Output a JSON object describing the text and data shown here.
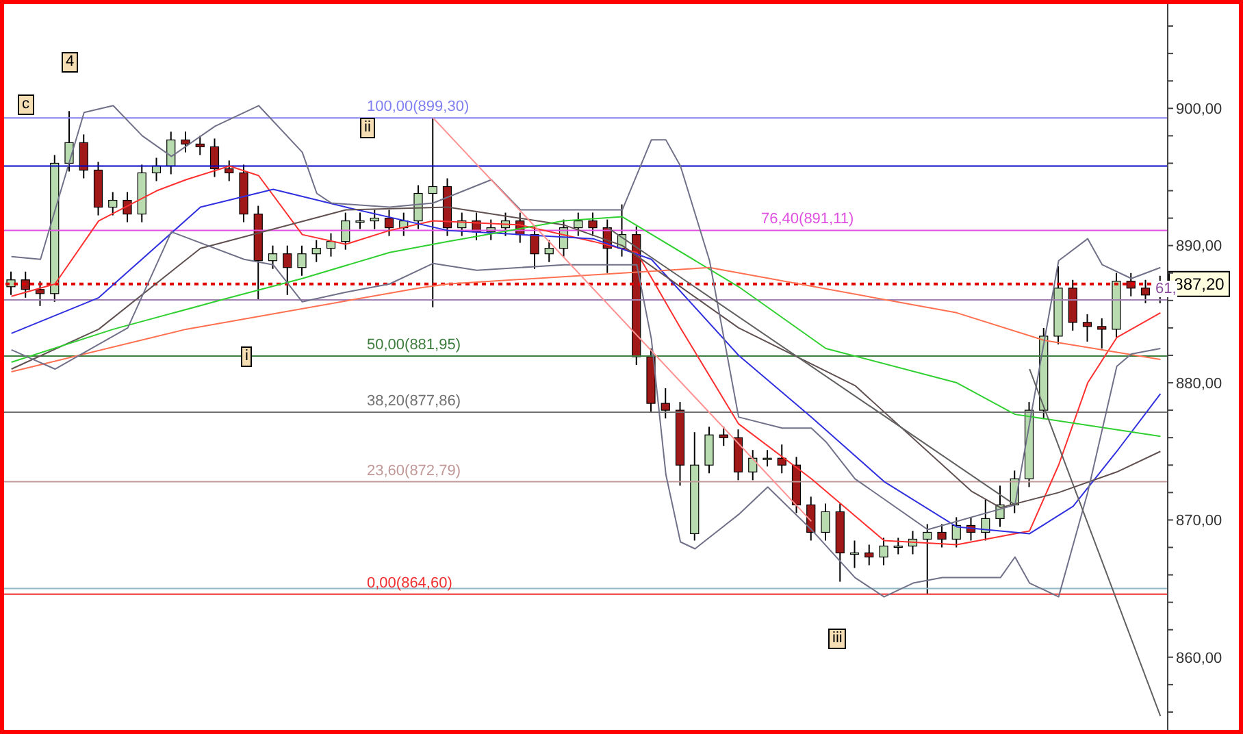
{
  "chart_data": {
    "type": "candlestick",
    "tick_labels": "y",
    "categories": [
      null,
      null,
      null,
      null,
      null,
      null,
      null,
      null,
      null,
      null,
      null,
      null,
      null,
      null,
      null,
      null,
      null,
      null,
      null,
      null,
      null,
      null,
      null,
      null,
      null,
      null,
      null,
      null,
      null,
      null,
      null,
      null,
      null,
      null,
      null,
      null,
      null,
      null,
      null,
      null,
      null,
      null,
      null,
      null,
      null,
      null,
      null,
      null,
      null,
      null,
      null,
      null,
      null,
      null,
      null,
      null,
      null,
      null,
      null,
      null,
      null,
      null,
      null,
      null,
      null,
      null,
      null,
      null,
      null,
      null,
      null,
      null,
      null,
      null,
      null,
      null,
      null,
      null,
      null,
      null
    ],
    "ylim": [
      854.7,
      907.6
    ],
    "yticks": [
      {
        "value": 856,
        "label": null
      },
      {
        "value": 858,
        "label": null
      },
      {
        "value": 860,
        "label": "860,00"
      },
      {
        "value": 862,
        "label": null
      },
      {
        "value": 864,
        "label": null
      },
      {
        "value": 866,
        "label": null
      },
      {
        "value": 868,
        "label": null
      },
      {
        "value": 870,
        "label": "870,00"
      },
      {
        "value": 872,
        "label": null
      },
      {
        "value": 874,
        "label": null
      },
      {
        "value": 876,
        "label": null
      },
      {
        "value": 878,
        "label": null
      },
      {
        "value": 880,
        "label": "880,00"
      },
      {
        "value": 882,
        "label": null
      },
      {
        "value": 884,
        "label": null
      },
      {
        "value": 886,
        "label": null
      },
      {
        "value": 888,
        "label": null
      },
      {
        "value": 890,
        "label": "890,00"
      },
      {
        "value": 892,
        "label": null
      },
      {
        "value": 894,
        "label": null
      },
      {
        "value": 896,
        "label": null
      },
      {
        "value": 898,
        "label": null
      },
      {
        "value": 900,
        "label": "900,00"
      },
      {
        "value": 902,
        "label": null
      },
      {
        "value": 904,
        "label": null
      },
      {
        "value": 906,
        "label": null
      }
    ],
    "annotations": [
      "4",
      "c",
      "ii",
      "i",
      "iii",
      "61,"
    ],
    "ref_lines": [
      {
        "axis": "y",
        "value": 899.3,
        "label": "100,00(899,30)",
        "color": "#8080f0"
      },
      {
        "axis": "y",
        "value": 895.8,
        "label": null,
        "color": "#0000c0"
      },
      {
        "axis": "y",
        "value": 891.11,
        "label": "76,40(891,11)",
        "color": "#e050e0"
      },
      {
        "axis": "y",
        "value": 887.2,
        "label": "887,20",
        "color": "#e00000",
        "line_style": "dotted"
      },
      {
        "axis": "y",
        "value": 886.04,
        "label": null,
        "color": "#a080b0"
      },
      {
        "axis": "y",
        "value": 881.95,
        "label": "50,00(881,95)",
        "color": "#3c7c3c"
      },
      {
        "axis": "y",
        "value": 877.86,
        "label": "38,20(877,86)",
        "color": "#707070"
      },
      {
        "axis": "y",
        "value": 872.79,
        "label": "23,60(872,79)",
        "color": "#c09898"
      },
      {
        "axis": "y",
        "value": 865.0,
        "label": null,
        "color": "#90b8c8"
      },
      {
        "axis": "y",
        "value": 864.6,
        "label": "0,00(864,60)",
        "color": "#f03030"
      }
    ],
    "series": [
      {
        "color": "#000000",
        "colors": [
          "#b8dcb0",
          "#a01818",
          "#a01818",
          "#b8dcb0",
          "#b8dcb0",
          "#a01818",
          "#a01818",
          "#b8dcb0",
          "#a01818",
          "#b8dcb0",
          "#b8dcb0",
          "#b8dcb0",
          "#a01818",
          "#a01818",
          "#a01818",
          "#a01818",
          "#a01818",
          "#a01818",
          "#b8dcb0",
          "#a01818",
          "#b8dcb0",
          "#b8dcb0",
          "#b8dcb0",
          "#b8dcb0",
          "#b8dcb0",
          "#b8dcb0",
          "#a01818",
          "#b8dcb0",
          "#b8dcb0",
          "#b8dcb0",
          "#a01818",
          "#b8dcb0",
          "#a01818",
          "#b8dcb0",
          "#b8dcb0",
          "#a01818",
          "#a01818",
          "#b8dcb0",
          "#b8dcb0",
          "#b8dcb0",
          "#a01818",
          "#a01818",
          "#b8dcb0",
          "#a01818",
          "#a01818",
          "#a01818",
          "#a01818",
          "#b8dcb0",
          "#b8dcb0",
          "#a01818",
          "#a01818",
          "#b8dcb0",
          "#b8dcb0",
          "#a01818",
          "#a01818",
          "#a01818",
          "#b8dcb0",
          "#a01818",
          "#b8dcb0",
          "#a01818",
          "#b8dcb0",
          "#b8dcb0",
          "#b8dcb0",
          "#b8dcb0",
          "#a01818",
          "#b8dcb0",
          "#a01818",
          "#b8dcb0",
          "#b8dcb0",
          "#b8dcb0",
          "#b8dcb0",
          "#b8dcb0",
          "#b8dcb0",
          "#a01818",
          "#a01818",
          "#a01818",
          "#b8dcb0",
          "#a01818",
          "#a01818",
          "#b8dcb0"
        ],
        "ohlc": [
          [
            887.0,
            888.1,
            886.4,
            887.5
          ],
          [
            887.5,
            888.1,
            886.2,
            886.8
          ],
          [
            886.8,
            887.4,
            885.6,
            886.5
          ],
          [
            886.5,
            896.6,
            885.9,
            896.0
          ],
          [
            896.0,
            899.8,
            895.4,
            897.5
          ],
          [
            897.5,
            898.1,
            894.9,
            895.5
          ],
          [
            895.5,
            896.1,
            892.2,
            892.8
          ],
          [
            892.8,
            893.9,
            892.2,
            893.3
          ],
          [
            893.3,
            893.9,
            891.7,
            892.3
          ],
          [
            892.3,
            895.9,
            891.7,
            895.3
          ],
          [
            895.3,
            896.4,
            894.7,
            895.8
          ],
          [
            895.8,
            898.3,
            895.2,
            897.7
          ],
          [
            897.7,
            898.3,
            896.8,
            897.4
          ],
          [
            897.4,
            898.0,
            896.6,
            897.2
          ],
          [
            897.2,
            897.8,
            895.0,
            895.6
          ],
          [
            895.6,
            896.2,
            894.7,
            895.3
          ],
          [
            895.3,
            895.9,
            891.7,
            892.3
          ],
          [
            892.3,
            892.9,
            886.0,
            888.9
          ],
          [
            888.9,
            890.0,
            888.3,
            889.4
          ],
          [
            889.4,
            890.0,
            886.4,
            888.4
          ],
          [
            888.4,
            890.0,
            887.8,
            889.4
          ],
          [
            889.4,
            890.4,
            888.8,
            889.8
          ],
          [
            889.8,
            890.9,
            889.2,
            890.3
          ],
          [
            890.3,
            892.4,
            889.7,
            891.8
          ],
          [
            891.8,
            892.4,
            891.2,
            891.8
          ],
          [
            891.8,
            892.6,
            891.2,
            892.0
          ],
          [
            892.0,
            892.6,
            890.7,
            891.3
          ],
          [
            891.3,
            892.4,
            890.7,
            891.8
          ],
          [
            891.8,
            894.4,
            891.2,
            893.8
          ],
          [
            893.8,
            899.3,
            885.5,
            894.3
          ],
          [
            894.3,
            894.9,
            890.7,
            891.3
          ],
          [
            891.3,
            892.4,
            890.7,
            891.8
          ],
          [
            891.8,
            892.4,
            890.4,
            891.0
          ],
          [
            891.0,
            891.9,
            890.4,
            891.3
          ],
          [
            891.3,
            892.4,
            890.7,
            891.8
          ],
          [
            891.8,
            892.4,
            890.2,
            890.8
          ],
          [
            890.8,
            891.4,
            888.3,
            889.4
          ],
          [
            889.4,
            890.4,
            888.8,
            889.8
          ],
          [
            889.8,
            891.9,
            889.2,
            891.3
          ],
          [
            891.3,
            892.4,
            890.7,
            891.8
          ],
          [
            891.8,
            892.4,
            890.7,
            891.3
          ],
          [
            891.3,
            891.9,
            888.0,
            889.8
          ],
          [
            889.8,
            893.0,
            889.2,
            890.8
          ],
          [
            890.8,
            891.4,
            881.3,
            881.9
          ],
          [
            881.9,
            882.5,
            877.9,
            878.5
          ],
          [
            878.5,
            879.6,
            877.4,
            878.0
          ],
          [
            878.0,
            878.6,
            872.5,
            874.0
          ],
          [
            869.0,
            876.4,
            868.5,
            874.0
          ],
          [
            874.0,
            876.8,
            873.4,
            876.2
          ],
          [
            876.2,
            876.8,
            875.4,
            876.0
          ],
          [
            876.0,
            876.6,
            872.9,
            873.5
          ],
          [
            873.5,
            875.1,
            872.9,
            874.5
          ],
          [
            874.5,
            875.1,
            873.9,
            874.5
          ],
          [
            874.5,
            875.5,
            873.4,
            874.0
          ],
          [
            874.0,
            874.6,
            870.5,
            871.1
          ],
          [
            871.1,
            871.7,
            868.5,
            869.1
          ],
          [
            869.1,
            871.2,
            868.5,
            870.6
          ],
          [
            870.6,
            871.2,
            865.5,
            867.6
          ],
          [
            867.6,
            868.5,
            866.5,
            867.6
          ],
          [
            867.6,
            868.2,
            866.7,
            867.3
          ],
          [
            867.3,
            868.7,
            866.7,
            868.1
          ],
          [
            868.1,
            868.7,
            867.5,
            868.1
          ],
          [
            868.1,
            869.2,
            867.5,
            868.6
          ],
          [
            868.6,
            869.7,
            864.6,
            869.1
          ],
          [
            869.1,
            869.7,
            868.0,
            868.6
          ],
          [
            868.6,
            870.2,
            868.0,
            869.6
          ],
          [
            869.6,
            870.2,
            868.5,
            869.1
          ],
          [
            869.1,
            871.5,
            868.5,
            870.1
          ],
          [
            870.1,
            872.5,
            869.5,
            871.1
          ],
          [
            871.1,
            873.6,
            870.5,
            873.0
          ],
          [
            873.0,
            878.6,
            872.4,
            878.0
          ],
          [
            878.0,
            884.0,
            877.4,
            883.4
          ],
          [
            883.4,
            888.5,
            882.8,
            886.9
          ],
          [
            886.9,
            887.5,
            883.8,
            884.4
          ],
          [
            884.4,
            885.0,
            883.0,
            884.1
          ],
          [
            884.1,
            884.7,
            882.5,
            883.9
          ],
          [
            883.9,
            888.0,
            883.3,
            887.4
          ],
          [
            887.4,
            888.0,
            886.3,
            886.9
          ],
          [
            886.9,
            887.5,
            885.8,
            886.4
          ],
          [
            886.4,
            887.8,
            885.8,
            887.2
          ]
        ]
      },
      {
        "type": "line",
        "color": "#ff3030",
        "values": [
          886.3,
          null,
          null,
          887.2,
          null,
          null,
          891.8,
          null,
          null,
          null,
          894,
          null,
          894.8,
          null,
          null,
          895.8,
          null,
          895.1,
          null,
          null,
          890.8,
          null,
          null,
          890.1,
          null,
          null,
          891.1,
          null,
          null,
          891.8,
          null,
          null,
          null,
          null,
          null,
          891.5,
          null,
          null,
          null,
          null,
          890.3,
          null,
          null,
          889.5,
          null,
          null,
          884,
          null,
          null,
          null,
          877,
          null,
          null,
          null,
          null,
          873,
          null,
          null,
          null,
          null,
          868.5,
          null,
          null,
          null,
          null,
          868.2,
          null,
          null,
          null,
          null,
          869.2,
          null,
          874,
          null,
          880,
          null,
          883.3,
          null,
          null,
          885.1
        ]
      },
      {
        "type": "line",
        "color": "#3030e0",
        "values": [
          883.6,
          null,
          null,
          null,
          null,
          null,
          886.2,
          null,
          null,
          null,
          null,
          null,
          null,
          892.8,
          null,
          null,
          null,
          null,
          894.1,
          null,
          null,
          null,
          null,
          892.8,
          null,
          null,
          null,
          null,
          null,
          null,
          891.1,
          null,
          null,
          null,
          null,
          null,
          null,
          null,
          null,
          null,
          890.5,
          null,
          null,
          null,
          889,
          null,
          null,
          null,
          null,
          null,
          882,
          null,
          null,
          null,
          null,
          877.5,
          null,
          null,
          null,
          null,
          872.8,
          null,
          null,
          null,
          null,
          869.5,
          null,
          null,
          null,
          null,
          869,
          null,
          null,
          871,
          null,
          null,
          875,
          null,
          null,
          879.2
        ]
      },
      {
        "type": "line",
        "color": "#605050",
        "values": [
          881,
          null,
          null,
          null,
          null,
          null,
          883.9,
          null,
          null,
          null,
          null,
          null,
          null,
          889.8,
          null,
          null,
          null,
          null,
          null,
          null,
          null,
          null,
          null,
          892.6,
          null,
          null,
          null,
          null,
          null,
          null,
          892.8,
          null,
          null,
          null,
          null,
          null,
          null,
          null,
          891.5,
          null,
          null,
          null,
          890,
          null,
          null,
          null,
          null,
          null,
          null,
          null,
          884,
          null,
          null,
          null,
          null,
          null,
          null,
          null,
          879.8,
          null,
          null,
          null,
          null,
          null,
          null,
          null,
          872.1,
          null,
          870.9,
          null,
          null,
          null,
          872,
          null,
          null,
          null,
          873.5,
          null,
          null,
          875
        ]
      },
      {
        "type": "line",
        "color": "#30d030",
        "values": [
          881.5,
          null,
          null,
          null,
          null,
          null,
          null,
          883.9,
          null,
          null,
          null,
          null,
          null,
          null,
          null,
          886.2,
          null,
          null,
          null,
          null,
          887.6,
          null,
          null,
          null,
          null,
          null,
          889.5,
          null,
          null,
          null,
          890.3,
          null,
          null,
          null,
          null,
          null,
          null,
          null,
          891.8,
          null,
          null,
          null,
          892.1,
          null,
          null,
          null,
          null,
          null,
          null,
          null,
          887,
          null,
          null,
          null,
          null,
          null,
          882.5,
          null,
          null,
          null,
          null,
          null,
          null,
          null,
          null,
          880,
          null,
          null,
          null,
          877.7,
          null,
          null,
          null,
          null,
          null,
          null,
          null,
          null,
          null,
          876.1
        ]
      },
      {
        "type": "line",
        "color": "#ff7050",
        "values": [
          880.8,
          null,
          null,
          null,
          null,
          null,
          null,
          null,
          null,
          null,
          null,
          null,
          883.9,
          null,
          null,
          null,
          null,
          null,
          null,
          null,
          null,
          null,
          null,
          null,
          null,
          null,
          null,
          null,
          886.9,
          null,
          887.2,
          null,
          null,
          null,
          null,
          null,
          null,
          null,
          null,
          null,
          null,
          null,
          null,
          null,
          null,
          null,
          null,
          null,
          888.4,
          null,
          null,
          null,
          null,
          null,
          null,
          null,
          null,
          null,
          null,
          null,
          null,
          null,
          null,
          null,
          null,
          885.1,
          null,
          null,
          null,
          null,
          null,
          883.1,
          null,
          null,
          null,
          null,
          null,
          null,
          null,
          881.7
        ]
      },
      {
        "type": "line",
        "color": "#707088",
        "values": [
          889.2,
          null,
          889,
          null,
          null,
          899.7,
          null,
          900.2,
          null,
          898,
          null,
          896.5,
          null,
          null,
          898.7,
          null,
          899.7,
          900.2,
          null,
          null,
          896.8,
          893.8,
          893.1,
          null,
          null,
          null,
          892.8,
          null,
          null,
          893.1,
          null,
          null,
          null,
          894.8,
          null,
          892.6,
          null,
          null,
          null,
          null,
          null,
          null,
          892.6,
          null,
          897.7,
          897.7,
          895.8,
          null,
          888.9,
          null,
          877.5,
          null,
          null,
          876.7,
          null,
          876.7,
          875.7,
          null,
          873,
          null,
          null,
          null,
          null,
          869.3,
          null,
          null,
          null,
          null,
          null,
          871.1,
          null,
          null,
          888.9,
          null,
          890.5,
          888.6,
          null,
          887.6,
          null,
          888.4
        ]
      },
      {
        "type": "line",
        "color": "#707088",
        "values": [
          882.4,
          null,
          null,
          881,
          null,
          null,
          null,
          null,
          884,
          null,
          null,
          891,
          null,
          null,
          null,
          null,
          889,
          null,
          888.6,
          null,
          885.9,
          null,
          null,
          886.6,
          null,
          null,
          887.2,
          null,
          null,
          888.7,
          null,
          null,
          888.2,
          null,
          null,
          null,
          null,
          null,
          888.6,
          null,
          null,
          null,
          null,
          888.6,
          883.2,
          873.3,
          868.4,
          867.9,
          null,
          null,
          870.4,
          null,
          872.4,
          null,
          null,
          869.3,
          null,
          null,
          865.8,
          null,
          864.4,
          null,
          865.4,
          null,
          865.8,
          null,
          null,
          null,
          865.8,
          867.3,
          865.4,
          null,
          864.4,
          null,
          872,
          null,
          881.2,
          882.1,
          null,
          882.5
        ]
      },
      {
        "type": "line",
        "color": "#ff9090",
        "values": [
          null,
          null,
          null,
          null,
          null,
          null,
          null,
          null,
          null,
          null,
          null,
          null,
          null,
          null,
          null,
          null,
          null,
          null,
          null,
          null,
          null,
          null,
          null,
          null,
          null,
          null,
          null,
          null,
          null,
          899.3,
          null,
          null,
          null,
          null,
          null,
          null,
          null,
          null,
          null,
          null,
          null,
          null,
          null,
          null,
          null,
          null,
          null,
          null,
          null,
          null,
          null,
          null,
          null,
          null,
          null,
          869.9,
          null,
          null,
          null,
          null,
          null,
          null,
          null,
          null,
          null,
          null,
          null,
          null,
          null,
          null,
          null,
          null,
          null,
          null,
          null,
          null,
          null,
          null,
          null,
          null
        ]
      },
      {
        "type": "line",
        "color": "#606060",
        "values": [
          null,
          null,
          null,
          null,
          null,
          null,
          null,
          null,
          null,
          null,
          null,
          null,
          null,
          null,
          null,
          null,
          null,
          null,
          null,
          null,
          null,
          null,
          null,
          null,
          null,
          null,
          null,
          null,
          null,
          null,
          null,
          null,
          null,
          null,
          null,
          null,
          null,
          null,
          null,
          null,
          null,
          891.3,
          null,
          null,
          null,
          null,
          null,
          null,
          null,
          null,
          null,
          null,
          null,
          null,
          null,
          null,
          null,
          null,
          null,
          null,
          null,
          null,
          null,
          null,
          null,
          null,
          null,
          null,
          null,
          871.1,
          null,
          null,
          null,
          null,
          null,
          null,
          null,
          null,
          null,
          null
        ]
      },
      {
        "type": "line",
        "color": "#606060",
        "values": [
          null,
          null,
          null,
          null,
          null,
          null,
          null,
          null,
          null,
          null,
          null,
          null,
          null,
          null,
          null,
          null,
          null,
          null,
          null,
          null,
          null,
          null,
          null,
          null,
          null,
          null,
          null,
          null,
          null,
          null,
          null,
          null,
          null,
          null,
          null,
          null,
          null,
          null,
          null,
          null,
          null,
          null,
          null,
          null,
          null,
          null,
          null,
          null,
          null,
          null,
          null,
          null,
          null,
          null,
          null,
          null,
          null,
          null,
          null,
          null,
          null,
          null,
          null,
          null,
          null,
          null,
          null,
          null,
          null,
          null,
          881,
          null,
          null,
          null,
          null,
          null,
          null,
          null,
          null,
          855.7
        ]
      }
    ]
  }
}
